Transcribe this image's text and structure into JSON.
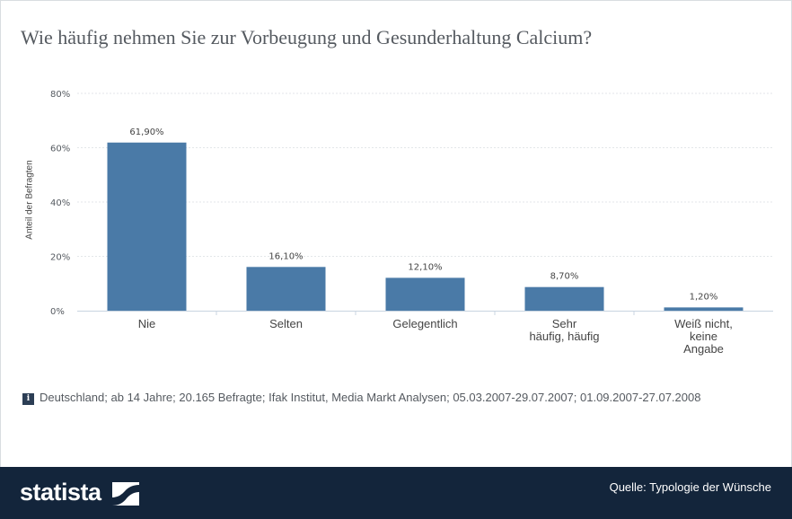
{
  "title": "Wie häufig nehmen Sie zur Vorbeugung und Gesunderhaltung Calcium?",
  "chart_data": {
    "type": "bar",
    "categories": [
      "Nie",
      "Selten",
      "Gelegentlich",
      "Sehr\nhäufig, häufig",
      "Weiß nicht,\nkeine\nAngabe"
    ],
    "values": [
      61.9,
      16.1,
      12.1,
      8.7,
      1.2
    ],
    "value_labels": [
      "61,90%",
      "16,10%",
      "12,10%",
      "8,70%",
      "1,20%"
    ],
    "ylabel": "Anteil der Befragten",
    "yticks": [
      "0%",
      "20%",
      "40%",
      "60%",
      "80%"
    ],
    "ylim": [
      0,
      80
    ],
    "grid": true,
    "bar_color": "#4a7aa7"
  },
  "note": "Deutschland; ab 14 Jahre; 20.165 Befragte; Ifak Institut, Media Markt Analysen; 05.03.2007-29.07.2007; 01.09.2007-27.07.2008",
  "footer": {
    "logo": "statista",
    "source": "Quelle: Typologie der Wünsche"
  }
}
